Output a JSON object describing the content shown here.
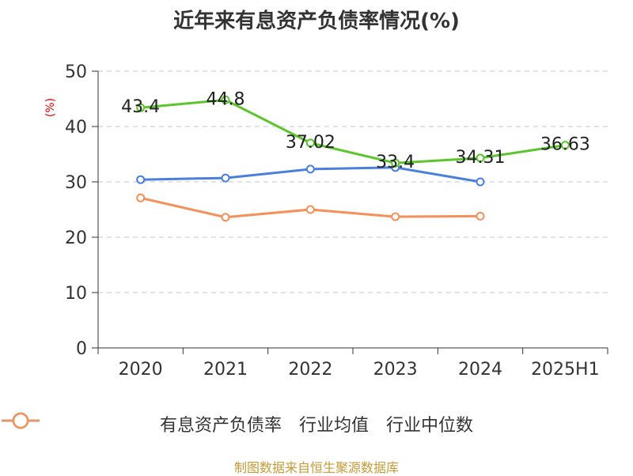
{
  "title": "近年来有息资产负债率情况(%)",
  "unit_label": "(%)",
  "source": "制图数据来自恒生聚源数据库",
  "chart_data": {
    "type": "line",
    "categories": [
      "2020",
      "2021",
      "2022",
      "2023",
      "2024",
      "2025H1"
    ],
    "ylim": [
      0,
      50
    ],
    "yticks": [
      0,
      10,
      20,
      30,
      40,
      50
    ],
    "grid": true,
    "legend_position": "bottom",
    "series": [
      {
        "name": "有息资产负债率",
        "color": "#5cc52e",
        "values": [
          43.4,
          44.8,
          37.02,
          33.4,
          34.31,
          36.63
        ],
        "labels": [
          "43.4",
          "44.8",
          "37.02",
          "33.4",
          "34.31",
          "36.63"
        ],
        "show_labels": true
      },
      {
        "name": "行业均值",
        "color": "#4a7fdb",
        "values": [
          30.4,
          30.7,
          32.3,
          32.6,
          30.0,
          null
        ],
        "show_labels": false
      },
      {
        "name": "行业中位数",
        "color": "#f5905a",
        "values": [
          27.1,
          23.6,
          25.0,
          23.7,
          23.8,
          null
        ],
        "show_labels": false
      }
    ]
  }
}
